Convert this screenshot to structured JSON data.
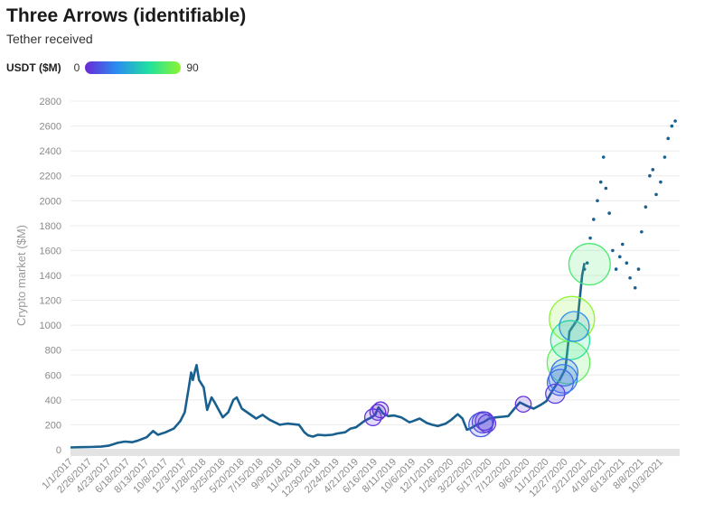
{
  "header": {
    "title": "Three Arrows (identifiable)",
    "subtitle": "Tether received"
  },
  "legend": {
    "label": "USDT ($M)",
    "min_label": "0",
    "max_label": "90",
    "gradient_colors": [
      "#6a28d8",
      "#2a8df0",
      "#20e0a0",
      "#8cf530"
    ]
  },
  "colors": {
    "line": "#19608f",
    "grid": "#ececec",
    "baseline": "#e3e3e3"
  },
  "chart_data": {
    "type": "scatter",
    "title": "Three Arrows (identifiable)",
    "subtitle": "Tether received",
    "ylabel": "Crypto market ($M)",
    "xlabel": "",
    "ylim": [
      0,
      2800
    ],
    "yticks": [
      0,
      200,
      400,
      600,
      800,
      1000,
      1200,
      1400,
      1600,
      1800,
      2000,
      2200,
      2400,
      2600,
      2800
    ],
    "xlim": [
      "1/1/2017",
      "11/28/2021"
    ],
    "xticks": [
      "1/1/2017",
      "2/26/2017",
      "4/23/2017",
      "6/18/2017",
      "8/13/2017",
      "10/8/2017",
      "12/3/2017",
      "1/28/2018",
      "3/25/2018",
      "5/20/2018",
      "7/15/2018",
      "9/9/2018",
      "11/4/2018",
      "12/30/2018",
      "2/24/2019",
      "4/21/2019",
      "6/16/2019",
      "8/11/2019",
      "10/6/2019",
      "12/1/2019",
      "1/26/2020",
      "3/22/2020",
      "5/17/2020",
      "7/12/2020",
      "9/6/2020",
      "11/1/2020",
      "12/27/2020",
      "2/21/2021",
      "4/18/2021",
      "6/13/2021",
      "8/8/2021",
      "10/3/2021"
    ],
    "grid": true,
    "series": [
      {
        "style": "line",
        "points": [
          [
            "1/1/2017",
            18
          ],
          [
            "2/1/2017",
            20
          ],
          [
            "3/1/2017",
            22
          ],
          [
            "4/1/2017",
            25
          ],
          [
            "4/23/2017",
            32
          ],
          [
            "5/20/2017",
            55
          ],
          [
            "6/10/2017",
            65
          ],
          [
            "7/1/2017",
            60
          ],
          [
            "7/20/2017",
            75
          ],
          [
            "8/13/2017",
            100
          ],
          [
            "9/1/2017",
            150
          ],
          [
            "9/15/2017",
            120
          ],
          [
            "10/8/2017",
            140
          ],
          [
            "11/1/2017",
            170
          ],
          [
            "11/20/2017",
            230
          ],
          [
            "12/3/2017",
            300
          ],
          [
            "12/15/2017",
            500
          ],
          [
            "12/22/2017",
            620
          ],
          [
            "12/27/2017",
            560
          ],
          [
            "1/1/2018",
            620
          ],
          [
            "1/7/2018",
            680
          ],
          [
            "1/14/2018",
            560
          ],
          [
            "1/28/2018",
            500
          ],
          [
            "2/7/2018",
            320
          ],
          [
            "2/20/2018",
            420
          ],
          [
            "3/1/2018",
            380
          ],
          [
            "3/25/2018",
            260
          ],
          [
            "4/10/2018",
            300
          ],
          [
            "4/25/2018",
            400
          ],
          [
            "5/5/2018",
            420
          ],
          [
            "5/20/2018",
            330
          ],
          [
            "6/10/2018",
            290
          ],
          [
            "7/1/2018",
            250
          ],
          [
            "7/20/2018",
            280
          ],
          [
            "8/10/2018",
            240
          ],
          [
            "9/9/2018",
            200
          ],
          [
            "10/1/2018",
            210
          ],
          [
            "11/4/2018",
            200
          ],
          [
            "11/20/2018",
            140
          ],
          [
            "12/1/2018",
            115
          ],
          [
            "12/15/2018",
            105
          ],
          [
            "12/30/2018",
            120
          ],
          [
            "1/20/2019",
            115
          ],
          [
            "2/10/2019",
            120
          ],
          [
            "2/24/2019",
            130
          ],
          [
            "3/20/2019",
            140
          ],
          [
            "4/5/2019",
            170
          ],
          [
            "4/21/2019",
            180
          ],
          [
            "5/15/2019",
            230
          ],
          [
            "6/5/2019",
            260
          ],
          [
            "6/16/2019",
            280
          ],
          [
            "6/26/2019",
            340
          ],
          [
            "7/10/2019",
            290
          ],
          [
            "7/25/2019",
            270
          ],
          [
            "8/11/2019",
            275
          ],
          [
            "9/1/2019",
            260
          ],
          [
            "9/25/2019",
            220
          ],
          [
            "10/6/2019",
            230
          ],
          [
            "10/25/2019",
            250
          ],
          [
            "11/15/2019",
            215
          ],
          [
            "12/1/2019",
            200
          ],
          [
            "12/18/2019",
            190
          ],
          [
            "1/10/2020",
            210
          ],
          [
            "1/26/2020",
            240
          ],
          [
            "2/14/2020",
            285
          ],
          [
            "2/28/2020",
            250
          ],
          [
            "3/12/2020",
            160
          ],
          [
            "3/22/2020",
            170
          ],
          [
            "4/10/2020",
            200
          ],
          [
            "4/29/2020",
            220
          ],
          [
            "5/17/2020",
            250
          ],
          [
            "6/5/2020",
            260
          ],
          [
            "6/25/2020",
            265
          ],
          [
            "7/12/2020",
            270
          ],
          [
            "7/30/2020",
            330
          ],
          [
            "8/15/2020",
            380
          ],
          [
            "9/6/2020",
            350
          ],
          [
            "9/25/2020",
            330
          ],
          [
            "10/15/2020",
            360
          ],
          [
            "11/1/2020",
            390
          ],
          [
            "11/20/2020",
            480
          ],
          [
            "12/10/2020",
            560
          ],
          [
            "12/27/2020",
            650
          ],
          [
            "1/8/2021",
            950
          ],
          [
            "1/20/2021",
            1000
          ],
          [
            "2/1/2021",
            1050
          ],
          [
            "2/14/2021",
            1400
          ],
          [
            "2/21/2021",
            1500
          ]
        ]
      },
      {
        "style": "dots",
        "points": [
          [
            "2/21/2021",
            1450
          ],
          [
            "3/1/2021",
            1500
          ],
          [
            "3/10/2021",
            1700
          ],
          [
            "3/20/2021",
            1850
          ],
          [
            "3/31/2021",
            2000
          ],
          [
            "4/10/2021",
            2150
          ],
          [
            "4/18/2021",
            2350
          ],
          [
            "4/25/2021",
            2100
          ],
          [
            "5/5/2021",
            1900
          ],
          [
            "5/15/2021",
            1600
          ],
          [
            "5/25/2021",
            1450
          ],
          [
            "6/5/2021",
            1550
          ],
          [
            "6/13/2021",
            1650
          ],
          [
            "6/25/2021",
            1500
          ],
          [
            "7/5/2021",
            1380
          ],
          [
            "7/20/2021",
            1300
          ],
          [
            "7/30/2021",
            1450
          ],
          [
            "8/8/2021",
            1750
          ],
          [
            "8/20/2021",
            1950
          ],
          [
            "9/1/2021",
            2200
          ],
          [
            "9/10/2021",
            2250
          ],
          [
            "9/20/2021",
            2050
          ],
          [
            "10/3/2021",
            2150
          ],
          [
            "10/15/2021",
            2350
          ],
          [
            "10/25/2021",
            2500
          ],
          [
            "11/5/2021",
            2600
          ],
          [
            "11/15/2021",
            2640
          ]
        ]
      }
    ],
    "bubbles": [
      {
        "date": "6/10/2019",
        "y": 260,
        "usdt": 4
      },
      {
        "date": "6/24/2019",
        "y": 300,
        "usdt": 3
      },
      {
        "date": "7/2/2019",
        "y": 320,
        "usdt": 3
      },
      {
        "date": "4/22/2020",
        "y": 200,
        "usdt": 15
      },
      {
        "date": "4/28/2020",
        "y": 220,
        "usdt": 10
      },
      {
        "date": "5/3/2020",
        "y": 230,
        "usdt": 6
      },
      {
        "date": "5/10/2020",
        "y": 210,
        "usdt": 5
      },
      {
        "date": "8/25/2020",
        "y": 365,
        "usdt": 3
      },
      {
        "date": "11/27/2020",
        "y": 450,
        "usdt": 7
      },
      {
        "date": "12/12/2020",
        "y": 540,
        "usdt": 20
      },
      {
        "date": "12/20/2020",
        "y": 570,
        "usdt": 26
      },
      {
        "date": "12/24/2020",
        "y": 620,
        "usdt": 22
      },
      {
        "date": "1/5/2021",
        "y": 700,
        "usdt": 78
      },
      {
        "date": "1/10/2021",
        "y": 880,
        "usdt": 62
      },
      {
        "date": "1/15/2021",
        "y": 1050,
        "usdt": 90
      },
      {
        "date": "1/22/2021",
        "y": 990,
        "usdt": 30
      },
      {
        "date": "3/8/2021",
        "y": 1490,
        "usdt": 72
      }
    ]
  }
}
